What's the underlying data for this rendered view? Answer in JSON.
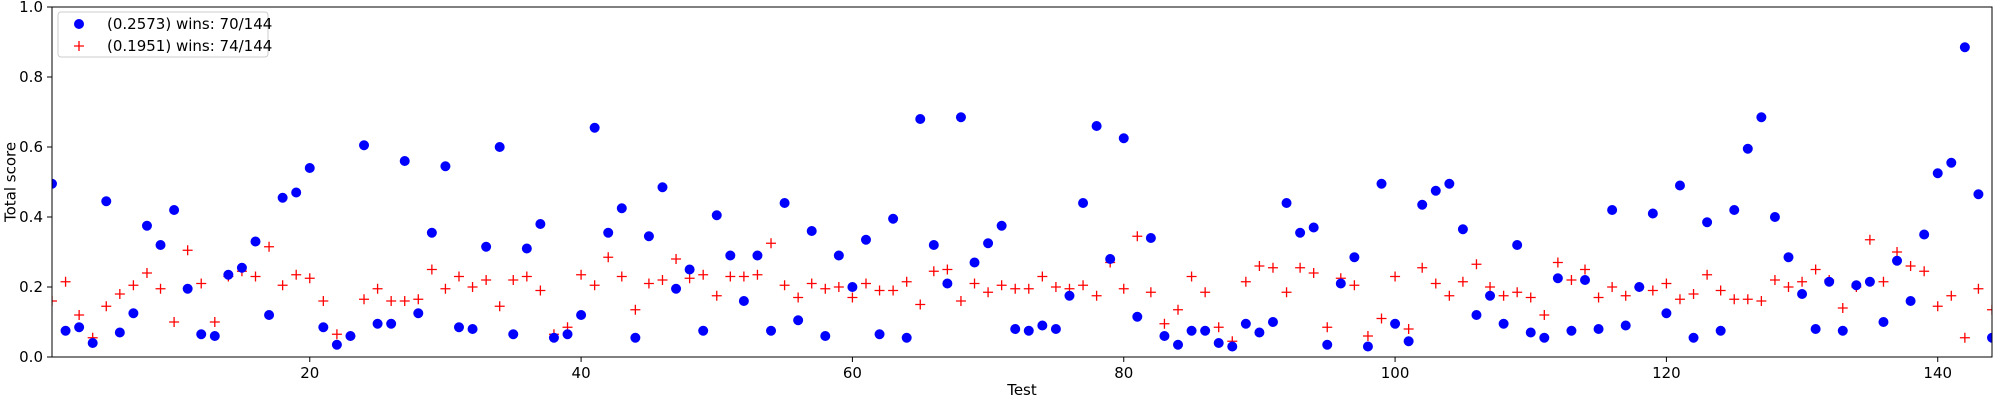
{
  "chart_data": {
    "type": "scatter",
    "title": "",
    "xlabel": "Test",
    "ylabel": "Total score",
    "xlim": [
      1,
      144
    ],
    "ylim": [
      0.0,
      1.0
    ],
    "x_ticks": [
      20,
      40,
      60,
      80,
      100,
      120,
      140
    ],
    "y_ticks": [
      0.0,
      0.2,
      0.4,
      0.6,
      0.8,
      1.0
    ],
    "x_tick_labels": [
      "20",
      "40",
      "60",
      "80",
      "100",
      "120",
      "140"
    ],
    "y_tick_labels": [
      "0.0",
      "0.2",
      "0.4",
      "0.6",
      "0.8",
      "1.0"
    ],
    "grid": false,
    "legend_position": "top-left",
    "series": [
      {
        "name": "(0.2573) wins: 70/144",
        "marker": "circle",
        "color": "#0000ff",
        "x": [
          1,
          2,
          3,
          4,
          5,
          6,
          7,
          8,
          9,
          10,
          11,
          12,
          13,
          14,
          15,
          16,
          17,
          18,
          19,
          20,
          21,
          22,
          23,
          24,
          25,
          26,
          27,
          28,
          29,
          30,
          31,
          32,
          33,
          34,
          35,
          36,
          37,
          38,
          39,
          40,
          41,
          42,
          43,
          44,
          45,
          46,
          47,
          48,
          49,
          50,
          51,
          52,
          53,
          54,
          55,
          56,
          57,
          58,
          59,
          60,
          61,
          62,
          63,
          64,
          65,
          66,
          67,
          68,
          69,
          70,
          71,
          72,
          73,
          74,
          75,
          76,
          77,
          78,
          79,
          80,
          81,
          82,
          83,
          84,
          85,
          86,
          87,
          88,
          89,
          90,
          91,
          92,
          93,
          94,
          95,
          96,
          97,
          98,
          99,
          100,
          101,
          102,
          103,
          104,
          105,
          106,
          107,
          108,
          109,
          110,
          111,
          112,
          113,
          114,
          115,
          116,
          117,
          118,
          119,
          120,
          121,
          122,
          123,
          124,
          125,
          126,
          127,
          128,
          129,
          130,
          131,
          132,
          133,
          134,
          135,
          136,
          137,
          138,
          139,
          140,
          141,
          142,
          143,
          144
        ],
        "y": [
          0.495,
          0.075,
          0.085,
          0.04,
          0.445,
          0.07,
          0.125,
          0.375,
          0.32,
          0.42,
          0.195,
          0.065,
          0.06,
          0.235,
          0.255,
          0.33,
          0.12,
          0.455,
          0.47,
          0.54,
          0.085,
          0.035,
          0.06,
          0.605,
          0.095,
          0.095,
          0.56,
          0.125,
          0.355,
          0.545,
          0.085,
          0.08,
          0.315,
          0.6,
          0.065,
          0.31,
          0.38,
          0.055,
          0.065,
          0.12,
          0.655,
          0.355,
          0.425,
          0.055,
          0.345,
          0.485,
          0.195,
          0.25,
          0.075,
          0.405,
          0.29,
          0.16,
          0.29,
          0.075,
          0.44,
          0.105,
          0.36,
          0.06,
          0.29,
          0.2,
          0.335,
          0.065,
          0.395,
          0.055,
          0.68,
          0.32,
          0.21,
          0.685,
          0.27,
          0.325,
          0.375,
          0.08,
          0.075,
          0.09,
          0.08,
          0.175,
          0.44,
          0.66,
          0.28,
          0.625,
          0.115,
          0.34,
          0.06,
          0.035,
          0.075,
          0.075,
          0.04,
          0.03,
          0.095,
          0.07,
          0.1,
          0.44,
          0.355,
          0.37,
          0.035,
          0.21,
          0.285,
          0.03,
          0.495,
          0.095,
          0.045,
          0.435,
          0.475,
          0.495,
          0.365,
          0.12,
          0.175,
          0.095,
          0.32,
          0.07,
          0.055,
          0.225,
          0.075,
          0.22,
          0.08,
          0.42,
          0.09,
          0.2,
          0.41,
          0.125,
          0.49,
          0.055,
          0.385,
          0.075,
          0.42,
          0.595,
          0.685,
          0.4,
          0.285,
          0.18,
          0.08,
          0.215,
          0.075,
          0.205,
          0.215,
          0.1,
          0.275,
          0.16,
          0.35,
          0.525,
          0.555,
          0.885,
          0.465,
          0.055
        ]
      },
      {
        "name": "(0.1951) wins: 74/144",
        "marker": "plus",
        "color": "#ff0000",
        "x": [
          1,
          2,
          3,
          4,
          5,
          6,
          7,
          8,
          9,
          10,
          11,
          12,
          13,
          14,
          15,
          16,
          17,
          18,
          19,
          20,
          21,
          22,
          23,
          24,
          25,
          26,
          27,
          28,
          29,
          30,
          31,
          32,
          33,
          34,
          35,
          36,
          37,
          38,
          39,
          40,
          41,
          42,
          43,
          44,
          45,
          46,
          47,
          48,
          49,
          50,
          51,
          52,
          53,
          54,
          55,
          56,
          57,
          58,
          59,
          60,
          61,
          62,
          63,
          64,
          65,
          66,
          67,
          68,
          69,
          70,
          71,
          72,
          73,
          74,
          75,
          76,
          77,
          78,
          79,
          80,
          81,
          82,
          83,
          84,
          85,
          86,
          87,
          88,
          89,
          90,
          91,
          92,
          93,
          94,
          95,
          96,
          97,
          98,
          99,
          100,
          101,
          102,
          103,
          104,
          105,
          106,
          107,
          108,
          109,
          110,
          111,
          112,
          113,
          114,
          115,
          116,
          117,
          118,
          119,
          120,
          121,
          122,
          123,
          124,
          125,
          126,
          127,
          128,
          129,
          130,
          131,
          132,
          133,
          134,
          135,
          136,
          137,
          138,
          139,
          140,
          141,
          142,
          143,
          144
        ],
        "y": [
          0.16,
          0.215,
          0.12,
          0.055,
          0.145,
          0.18,
          0.205,
          0.24,
          0.195,
          0.1,
          0.305,
          0.21,
          0.1,
          0.23,
          0.245,
          0.23,
          0.315,
          0.205,
          0.235,
          0.225,
          0.16,
          0.065,
          0.06,
          0.165,
          0.195,
          0.16,
          0.16,
          0.165,
          0.25,
          0.195,
          0.23,
          0.2,
          0.22,
          0.145,
          0.22,
          0.23,
          0.19,
          0.065,
          0.085,
          0.235,
          0.205,
          0.285,
          0.23,
          0.135,
          0.21,
          0.22,
          0.28,
          0.225,
          0.235,
          0.175,
          0.23,
          0.23,
          0.235,
          0.325,
          0.205,
          0.17,
          0.21,
          0.195,
          0.2,
          0.17,
          0.21,
          0.19,
          0.19,
          0.215,
          0.15,
          0.245,
          0.25,
          0.16,
          0.21,
          0.185,
          0.205,
          0.195,
          0.195,
          0.23,
          0.2,
          0.195,
          0.205,
          0.175,
          0.27,
          0.195,
          0.345,
          0.185,
          0.095,
          0.135,
          0.23,
          0.185,
          0.085,
          0.045,
          0.215,
          0.26,
          0.255,
          0.185,
          0.255,
          0.24,
          0.085,
          0.225,
          0.205,
          0.06,
          0.11,
          0.23,
          0.08,
          0.255,
          0.21,
          0.175,
          0.215,
          0.265,
          0.2,
          0.175,
          0.185,
          0.17,
          0.12,
          0.27,
          0.22,
          0.25,
          0.17,
          0.2,
          0.175,
          0.2,
          0.19,
          0.21,
          0.165,
          0.18,
          0.235,
          0.19,
          0.165,
          0.165,
          0.16,
          0.22,
          0.2,
          0.215,
          0.25,
          0.22,
          0.14,
          0.2,
          0.335,
          0.215,
          0.3,
          0.26,
          0.245,
          0.145,
          0.175,
          0.055,
          0.195,
          0.135
        ]
      }
    ]
  }
}
